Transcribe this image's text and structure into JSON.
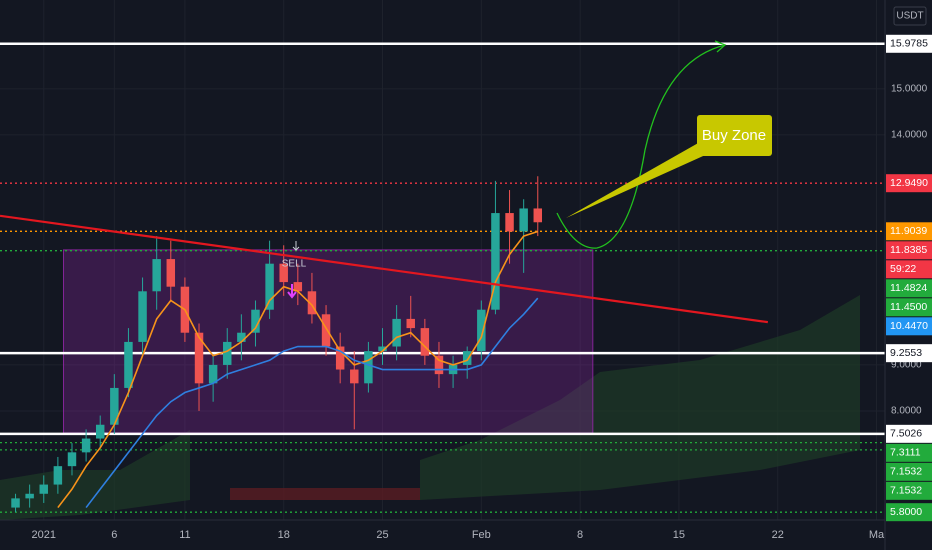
{
  "chart_data": {
    "type": "candlestick",
    "unit": "USDT",
    "xlim": [
      -3.1,
      59.6
    ],
    "ylim": [
      5.63,
      16.93
    ],
    "xticks": [
      {
        "value": 0,
        "label": "2021"
      },
      {
        "value": 5,
        "label": "6"
      },
      {
        "value": 10,
        "label": "11"
      },
      {
        "value": 17,
        "label": "18"
      },
      {
        "value": 24,
        "label": "25"
      },
      {
        "value": 31,
        "label": "Feb"
      },
      {
        "value": 38,
        "label": "8"
      },
      {
        "value": 45,
        "label": "15"
      },
      {
        "value": 52,
        "label": "22"
      },
      {
        "value": 59,
        "label": "Ma"
      }
    ],
    "yticks": [
      {
        "value": 15,
        "label": "15.0000"
      },
      {
        "value": 14,
        "label": "14.0000"
      },
      {
        "value": 9,
        "label": "9.0000"
      },
      {
        "value": 8,
        "label": "8.0000"
      }
    ],
    "up_color": "#26a69a",
    "down_color": "#ef5350",
    "candles": {
      "x": [
        -2,
        -1,
        0,
        1,
        2,
        3,
        4,
        5,
        6,
        7,
        8,
        9,
        10,
        11,
        12,
        13,
        14,
        15,
        16,
        17,
        18,
        19,
        20,
        21,
        22,
        23,
        24,
        25,
        26,
        27,
        28,
        29,
        30,
        31,
        32,
        33,
        34,
        35
      ],
      "open": [
        5.9,
        6.1,
        6.2,
        6.4,
        6.8,
        7.1,
        7.4,
        7.7,
        8.5,
        9.5,
        10.6,
        11.3,
        10.7,
        9.7,
        8.6,
        9.0,
        9.5,
        9.7,
        10.2,
        11.2,
        10.8,
        10.6,
        10.1,
        9.4,
        8.9,
        8.6,
        9.3,
        9.4,
        10.0,
        9.8,
        9.2,
        8.8,
        9.0,
        9.3,
        10.2,
        12.3,
        11.9,
        12.4
      ],
      "high": [
        6.2,
        6.4,
        6.6,
        7.0,
        7.3,
        7.6,
        7.9,
        8.8,
        9.8,
        10.9,
        11.8,
        11.7,
        10.9,
        9.9,
        9.2,
        9.8,
        10.1,
        10.4,
        11.7,
        11.6,
        11.2,
        11.0,
        10.3,
        9.7,
        9.3,
        9.5,
        9.8,
        10.3,
        10.5,
        10.0,
        9.5,
        9.2,
        9.4,
        10.4,
        13.0,
        12.8,
        12.6,
        13.1
      ],
      "low": [
        5.8,
        5.9,
        6.0,
        6.2,
        6.6,
        6.9,
        7.2,
        7.5,
        8.3,
        9.2,
        10.2,
        10.4,
        9.5,
        8.0,
        8.2,
        8.7,
        9.1,
        9.4,
        10.0,
        10.5,
        10.3,
        9.9,
        9.2,
        8.6,
        7.6,
        8.4,
        9.0,
        9.1,
        9.6,
        9.0,
        8.5,
        8.5,
        8.7,
        9.1,
        10.1,
        11.2,
        11.0,
        11.8
      ],
      "close": [
        6.1,
        6.2,
        6.4,
        6.8,
        7.1,
        7.4,
        7.7,
        8.5,
        9.5,
        10.6,
        11.3,
        10.7,
        9.7,
        8.6,
        9.0,
        9.5,
        9.7,
        10.2,
        11.2,
        10.8,
        10.6,
        10.1,
        9.4,
        8.9,
        8.6,
        9.3,
        9.4,
        10.0,
        9.8,
        9.2,
        8.8,
        9.0,
        9.3,
        10.2,
        12.3,
        11.9,
        12.4,
        12.1
      ]
    },
    "indicators": [
      {
        "color": "#f7931a",
        "values": [
          null,
          null,
          null,
          5.9,
          6.3,
          6.8,
          7.2,
          7.7,
          8.4,
          9.2,
          10.0,
          10.4,
          10.2,
          9.6,
          9.2,
          9.3,
          9.5,
          9.8,
          10.4,
          10.7,
          10.6,
          10.3,
          9.8,
          9.3,
          9.0,
          9.1,
          9.3,
          9.6,
          9.7,
          9.4,
          9.1,
          9.0,
          9.1,
          9.6,
          10.8,
          11.4,
          11.8,
          11.9
        ]
      },
      {
        "color": "#2f7fe0",
        "values": [
          null,
          null,
          null,
          null,
          null,
          5.9,
          6.3,
          6.7,
          7.1,
          7.5,
          7.9,
          8.2,
          8.4,
          8.5,
          8.6,
          8.8,
          8.9,
          9.0,
          9.1,
          9.3,
          9.4,
          9.4,
          9.4,
          9.3,
          9.1,
          9.0,
          8.9,
          8.9,
          8.9,
          8.9,
          8.9,
          8.9,
          8.9,
          9.0,
          9.4,
          9.8,
          10.1,
          10.45
        ]
      }
    ],
    "trendline": {
      "color": "#e3171f",
      "x": [
        -3.1,
        51.3
      ],
      "y": [
        12.24,
        9.93
      ]
    },
    "zone": {
      "color": "#9c27b0",
      "x": [
        1.4,
        38.9
      ],
      "y": [
        11.5,
        7.52
      ]
    },
    "levels": [
      {
        "value": 15.9785,
        "label": "15.9785",
        "color": "#ffffff",
        "line": "solid"
      },
      {
        "value": 12.949,
        "label": "12.9490",
        "color": "#f23645",
        "line": "dotted"
      },
      {
        "value": 11.9039,
        "label": "11.9039",
        "color": "#ff9800",
        "line": "dotted"
      },
      {
        "value": 11.8385,
        "label": "11.8385",
        "color": "#f23645",
        "line": "none"
      },
      {
        "value": 11.4824,
        "label": "11.4824",
        "color": "#22ab3c",
        "line": "dotted"
      },
      {
        "value": 11.45,
        "label": "11.4500",
        "color": "#22ab3c",
        "line": "none"
      },
      {
        "value": 10.447,
        "label": "10.4470",
        "color": "#2196f3",
        "line": "none"
      },
      {
        "value": 9.2553,
        "label": "9.2553",
        "color": "#ffffff",
        "line": "solid"
      },
      {
        "value": 7.5026,
        "label": "7.5026",
        "color": "#ffffff",
        "line": "solid"
      },
      {
        "value": 7.3111,
        "label": "7.3111",
        "color": "#22ab3c",
        "line": "dotted"
      },
      {
        "value": 7.1532,
        "label": "7.1532",
        "color": "#22ab3c",
        "line": "dotted"
      },
      {
        "value": 7.1532,
        "label": "7.1532",
        "color": "#22ab3c",
        "line": "none"
      },
      {
        "value": 5.8,
        "label": "5.8000",
        "color": "#22ab3c",
        "line": "dotted"
      }
    ],
    "countdown": "59:22",
    "annotations": {
      "sell": "SELL",
      "callout": "Buy Zone"
    }
  }
}
